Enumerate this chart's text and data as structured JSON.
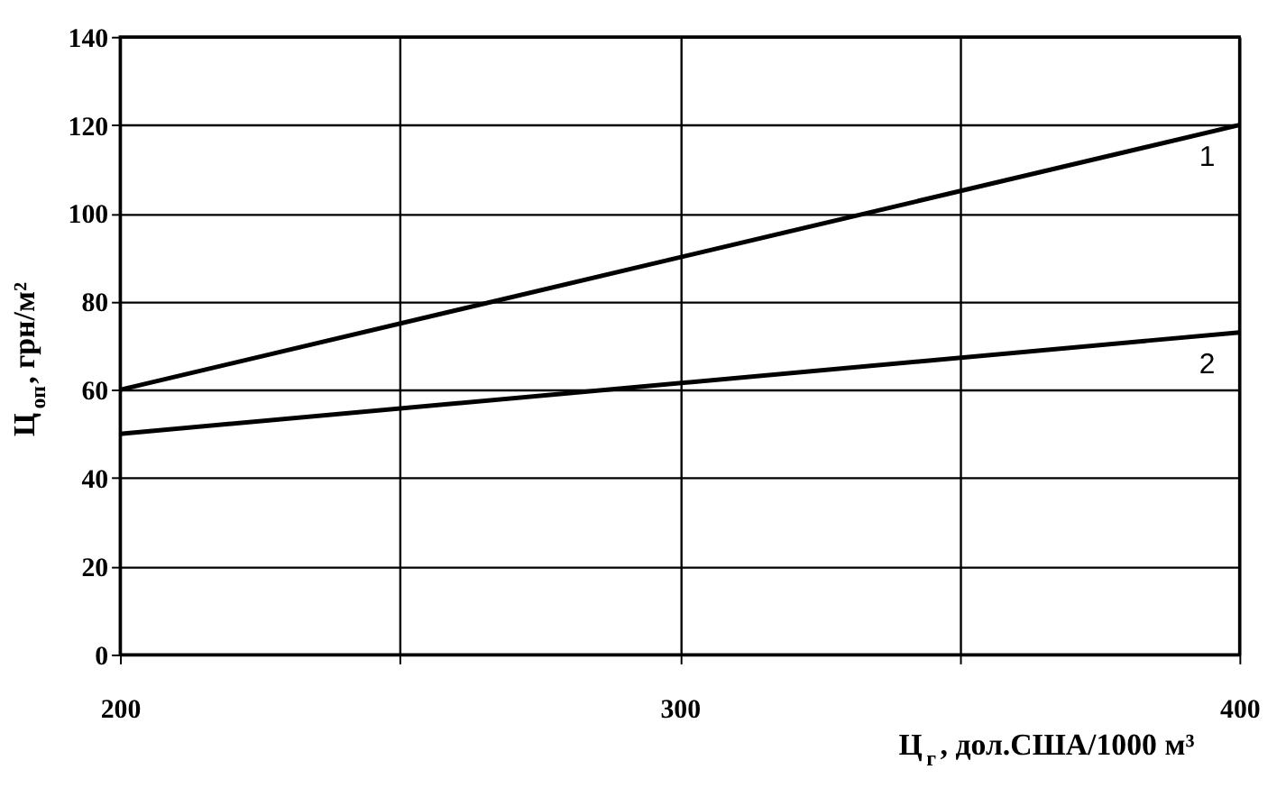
{
  "chart_data": {
    "type": "line",
    "x": [
      200,
      400
    ],
    "series": [
      {
        "name": "1",
        "color": "#000000",
        "values": [
          60,
          120
        ]
      },
      {
        "name": "2",
        "color": "#000000",
        "values": [
          50,
          73
        ]
      }
    ],
    "xlabel": "Ц$_{г}$, дол.США/1000 м³",
    "ylabel": "Ц$_{оп}$, грн/м²",
    "xlim": [
      200,
      400
    ],
    "ylim": [
      0,
      140
    ],
    "xticks": [
      200,
      {
        "value": 250,
        "label": null
      },
      300,
      {
        "value": 350,
        "label": null
      },
      400
    ],
    "yticks": [
      0,
      20,
      40,
      60,
      80,
      100,
      120,
      140
    ],
    "grid": true,
    "marker": "none",
    "line_style": "solid"
  }
}
